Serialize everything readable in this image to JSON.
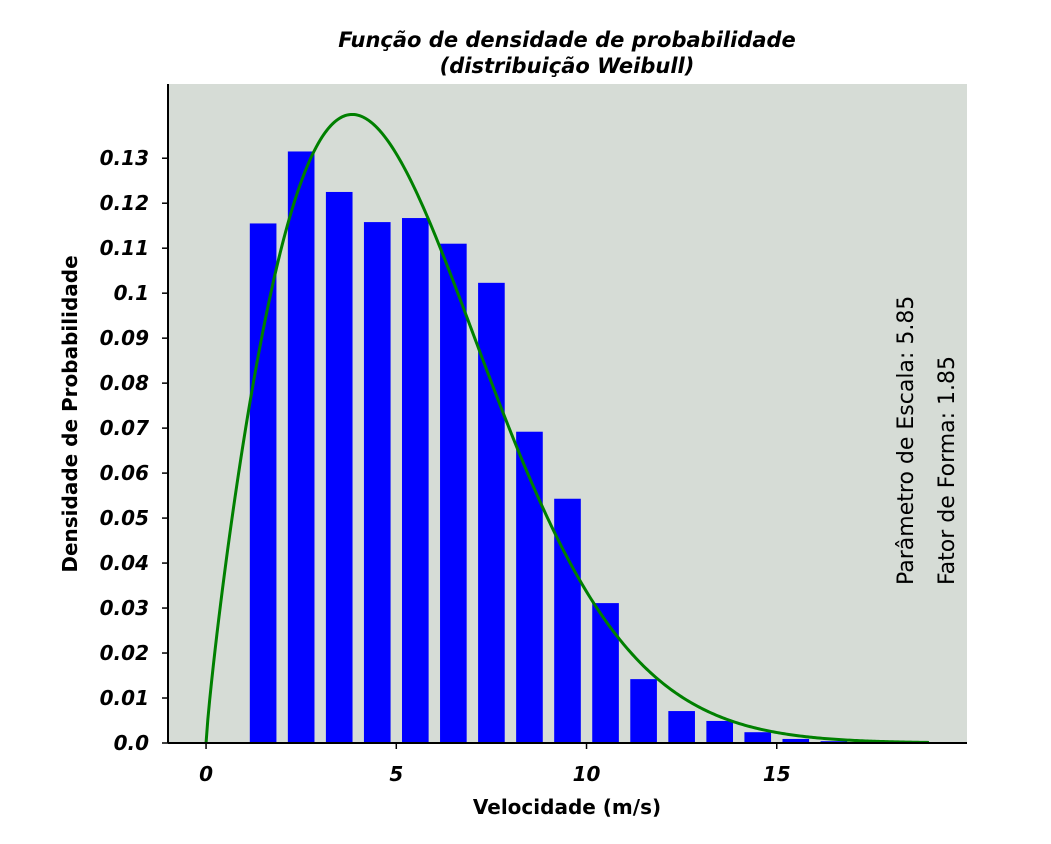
{
  "chart_data": {
    "type": "bar",
    "title": "Função de densidade de probabilidade",
    "subtitle": "(distribuição Weibull)",
    "xlabel": "Velocidade (m/s)",
    "ylabel": "Densidade de Probabilidade",
    "xlim": [
      -1,
      20
    ],
    "ylim": [
      0,
      0.1465
    ],
    "xticks": [
      0,
      5,
      10,
      15
    ],
    "xtick_labels": [
      "0",
      "5",
      "10",
      "15"
    ],
    "yticks": [
      0,
      0.01,
      0.02,
      0.03,
      0.04,
      0.05,
      0.06,
      0.07,
      0.08,
      0.09,
      0.1,
      0.11,
      0.12,
      0.13
    ],
    "ytick_labels": [
      "0.0",
      "0.01",
      "0.02",
      "0.03",
      "0.04",
      "0.05",
      "0.06",
      "0.07",
      "0.08",
      "0.09",
      "0.1",
      "0.11",
      "0.12",
      "0.13"
    ],
    "grid": false,
    "bars": {
      "color": "#0000ff",
      "width": 0.7,
      "x": [
        1.5,
        2.5,
        3.5,
        4.5,
        5.5,
        6.5,
        7.5,
        8.5,
        9.5,
        10.5,
        11.5,
        12.5,
        13.5,
        14.5,
        15.5,
        16.5
      ],
      "values": [
        0.1155,
        0.1315,
        0.1225,
        0.1158,
        0.1167,
        0.111,
        0.1023,
        0.0692,
        0.0543,
        0.0311,
        0.0142,
        0.0071,
        0.0049,
        0.0024,
        0.0009,
        0.0004
      ]
    },
    "curve": {
      "type": "line",
      "color": "#008000",
      "distribution": "weibull",
      "scale": 5.85,
      "shape": 1.85,
      "x_range": [
        0,
        19
      ]
    },
    "annotations": [
      "Parâmetro de Escala: 5.85",
      "Fator de Forma: 1.85"
    ],
    "plot_background": "#d6dcd6"
  }
}
